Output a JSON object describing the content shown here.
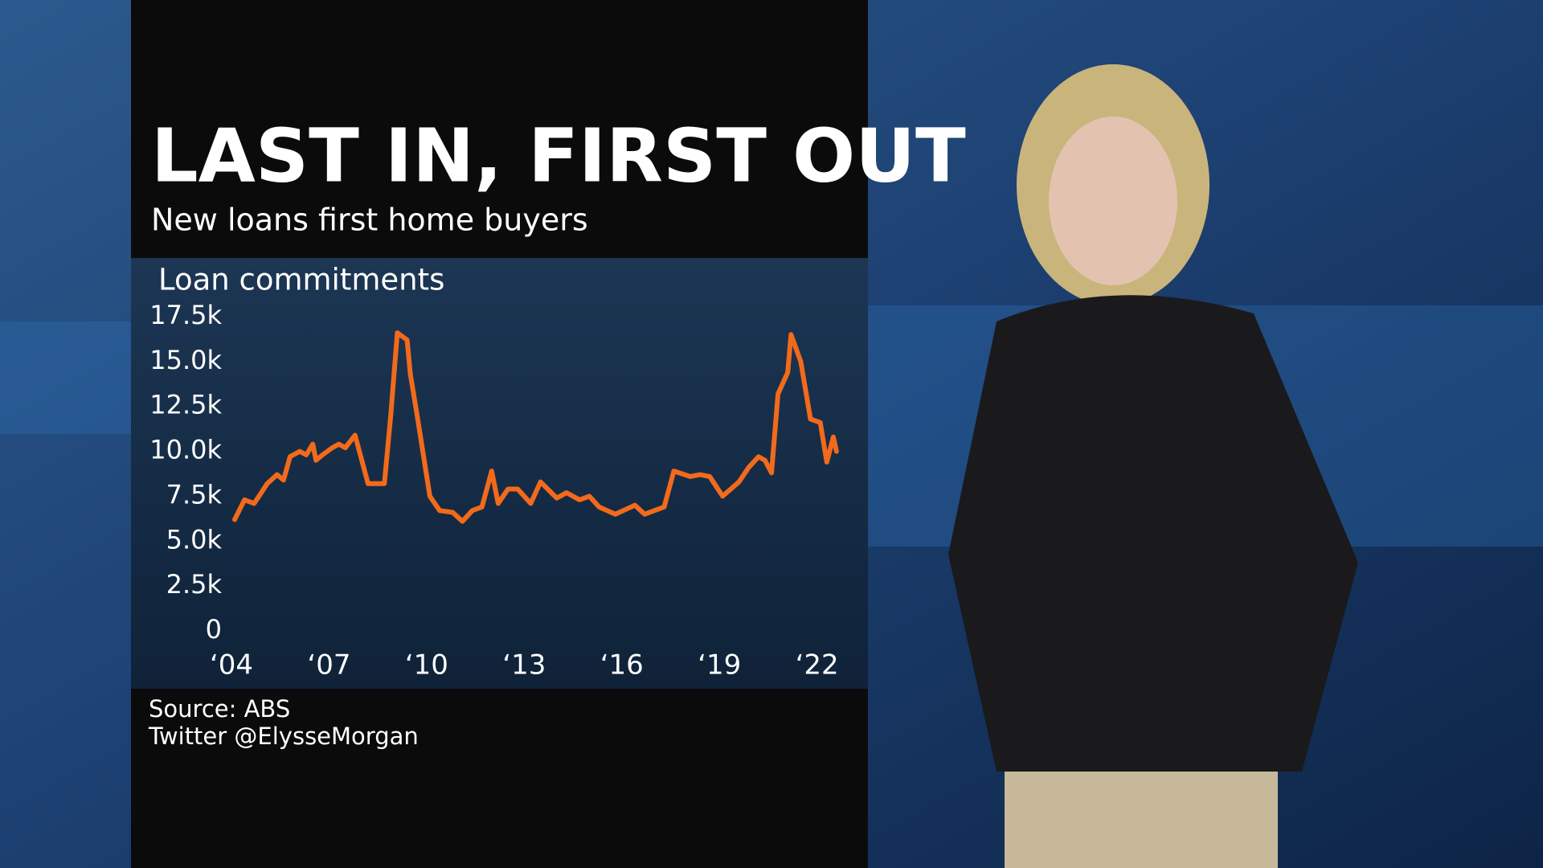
{
  "chart_data": {
    "type": "line",
    "title": "LAST IN, FIRST OUT",
    "subtitle": "New loans first home buyers",
    "y_label": "Loan commitments",
    "source": "Source: ABS",
    "credit": "Twitter @ElysseMorgan",
    "color": "#f26a1b",
    "x": [
      2004.1,
      2004.4,
      2004.7,
      2005.1,
      2005.4,
      2005.6,
      2005.8,
      2006.1,
      2006.3,
      2006.5,
      2006.6,
      2006.8,
      2007.1,
      2007.3,
      2007.5,
      2007.8,
      2008.2,
      2008.7,
      2008.9,
      2009.1,
      2009.4,
      2009.5,
      2009.7,
      2010.1,
      2010.4,
      2010.8,
      2011.1,
      2011.4,
      2011.7,
      2012.0,
      2012.2,
      2012.5,
      2012.8,
      2013.2,
      2013.5,
      2014.0,
      2014.3,
      2014.7,
      2015.0,
      2015.3,
      2015.8,
      2016.4,
      2016.7,
      2017.3,
      2017.6,
      2018.1,
      2018.4,
      2018.7,
      2019.1,
      2019.6,
      2019.9,
      2020.2,
      2020.4,
      2020.6,
      2020.8,
      2021.1,
      2021.2,
      2021.5,
      2021.8,
      2022.1,
      2022.3,
      2022.5,
      2022.6
    ],
    "values": [
      6200,
      7300,
      7100,
      8200,
      8700,
      8400,
      9700,
      10000,
      9800,
      10400,
      9500,
      9800,
      10200,
      10400,
      10200,
      10900,
      8200,
      8200,
      12100,
      16600,
      16200,
      14300,
      12100,
      7500,
      6700,
      6600,
      6100,
      6700,
      6900,
      8900,
      7100,
      7900,
      7900,
      7100,
      8300,
      7400,
      7700,
      7300,
      7500,
      6900,
      6500,
      7000,
      6500,
      6900,
      8900,
      8600,
      8700,
      8600,
      7500,
      8300,
      9100,
      9700,
      9500,
      8800,
      13200,
      14400,
      16500,
      15000,
      11800,
      11600,
      9400,
      10800,
      10000
    ],
    "xlim": [
      2004,
      2022.6
    ],
    "xticks": [
      {
        "value": 2004,
        "label": "‘04"
      },
      {
        "value": 2007,
        "label": "‘07"
      },
      {
        "value": 2010,
        "label": "‘10"
      },
      {
        "value": 2013,
        "label": "‘13"
      },
      {
        "value": 2016,
        "label": "‘16"
      },
      {
        "value": 2019,
        "label": "‘19"
      },
      {
        "value": 2022,
        "label": "‘22"
      }
    ],
    "ylim": [
      0,
      17500
    ],
    "yticks": [
      0,
      {
        "value": 2500,
        "label": "2.5k"
      },
      {
        "value": 5000,
        "label": "5.0k"
      },
      {
        "value": 7500,
        "label": "7.5k"
      },
      {
        "value": 10000,
        "label": "10.0k"
      },
      {
        "value": 12500,
        "label": "12.5k"
      },
      {
        "value": 15000,
        "label": "15.0k"
      },
      {
        "value": 17500,
        "label": "17.5k"
      }
    ],
    "grid": false
  }
}
